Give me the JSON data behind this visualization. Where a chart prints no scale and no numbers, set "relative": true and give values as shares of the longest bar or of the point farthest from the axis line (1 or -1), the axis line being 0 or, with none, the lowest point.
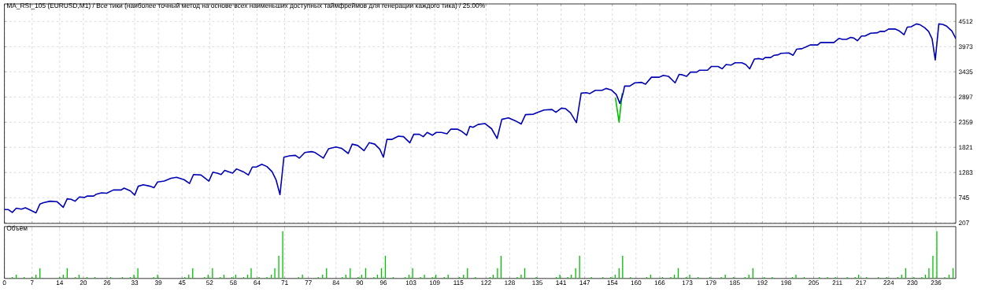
{
  "chart_data": [
    {
      "type": "line",
      "title": "MA_RSI_105 (EURUSD,M1) / Все тики (наиболее точный метод на основе всех наименьших доступных таймфреймов для генерации каждого тика) / 25.00%",
      "xlim": [
        0,
        241
      ],
      "xticks": [
        0,
        7,
        14,
        20,
        26,
        33,
        39,
        45,
        52,
        58,
        64,
        71,
        77,
        84,
        90,
        96,
        103,
        109,
        115,
        122,
        128,
        135,
        141,
        147,
        154,
        160,
        166,
        173,
        179,
        185,
        192,
        198,
        205,
        211,
        217,
        224,
        230,
        236
      ],
      "ylim": [
        195,
        4887
      ],
      "yticks": [
        207,
        745,
        1283,
        1821,
        2359,
        2897,
        3435,
        3973,
        4512
      ],
      "grid": true,
      "tick_labels": "y",
      "series": [
        {
          "color": "#00c000",
          "x": [
            154.8,
            155.7,
            156.5
          ],
          "values": [
            2870,
            2360,
            2970
          ]
        },
        {
          "color": "#0000b4",
          "x": [
            0,
            1.0,
            2.0,
            3.0,
            4.3,
            5.3,
            6.3,
            8.0,
            9.0,
            9.9,
            11.6,
            13.3,
            14.9,
            15.9,
            16.9,
            17.9,
            19.0,
            20.3,
            21.0,
            22.6,
            23.3,
            24.6,
            25.9,
            27.6,
            29.6,
            30.3,
            31.9,
            33.0,
            33.9,
            35.2,
            36.9,
            37.9,
            38.8,
            40.5,
            42.2,
            43.6,
            45.5,
            46.9,
            47.9,
            49.8,
            51.8,
            52.8,
            53.9,
            54.9,
            55.8,
            56.8,
            57.8,
            58.8,
            60.5,
            61.8,
            62.8,
            63.8,
            65.2,
            66.5,
            67.8,
            68.8,
            69.8,
            70.8,
            72.2,
            73.7,
            74.7,
            76.1,
            77.8,
            78.7,
            80.8,
            82.1,
            84.0,
            85.4,
            87.1,
            88.1,
            89.5,
            91.1,
            92.4,
            93.8,
            95.1,
            96.0,
            96.9,
            98.1,
            99.8,
            101.1,
            102.7,
            103.7,
            105.1,
            106.1,
            107.1,
            108.4,
            109.4,
            110.7,
            112.1,
            113.1,
            114.7,
            115.7,
            117.1,
            117.9,
            118.7,
            120.0,
            121.7,
            123.4,
            124.8,
            126.0,
            127.7,
            129.4,
            130.9,
            132.0,
            134.0,
            135.1,
            136.7,
            138.7,
            139.7,
            141.1,
            142.1,
            143.4,
            144.4,
            144.9,
            146.1,
            147.4,
            148.3,
            149.7,
            151.4,
            152.4,
            153.7,
            155.0,
            155.9,
            156.7,
            157.1,
            158.4,
            159.7,
            161.4,
            162.4,
            163.9,
            165.9,
            166.9,
            168.2,
            169.9,
            170.9,
            171.8,
            172.8,
            173.8,
            175.4,
            176.1,
            178.1,
            179.1,
            180.8,
            181.8,
            182.8,
            184.1,
            185.1,
            186.8,
            187.8,
            188.8,
            190.0,
            191.1,
            192.1,
            192.7,
            194.1,
            195.0,
            196.0,
            196.7,
            198.7,
            199.8,
            200.7,
            202.0,
            203.1,
            204.1,
            206.0,
            206.7,
            208.4,
            210.1,
            211.4,
            212.3,
            213.3,
            214.4,
            215.1,
            216.1,
            217.1,
            218.0,
            219.4,
            221.1,
            221.8,
            223.0,
            224.0,
            225.7,
            226.7,
            227.9,
            228.7,
            229.7,
            231.0,
            232.0,
            233.1,
            234.1,
            235.0,
            235.8,
            236.7,
            237.7,
            238.7,
            240.0,
            241.0
          ],
          "values": [
            490,
            490,
            430,
            520,
            500,
            530,
            490,
            420,
            610,
            640,
            670,
            660,
            540,
            720,
            710,
            670,
            760,
            750,
            780,
            780,
            820,
            850,
            840,
            910,
            910,
            950,
            890,
            800,
            990,
            1020,
            990,
            960,
            1080,
            1100,
            1160,
            1180,
            1130,
            1050,
            1240,
            1230,
            1100,
            1290,
            1270,
            1240,
            1330,
            1300,
            1270,
            1360,
            1300,
            1230,
            1400,
            1400,
            1460,
            1410,
            1300,
            1130,
            810,
            1610,
            1640,
            1650,
            1590,
            1710,
            1730,
            1710,
            1590,
            1790,
            1830,
            1800,
            1690,
            1890,
            1860,
            1750,
            1920,
            1890,
            1780,
            1610,
            1990,
            1990,
            2060,
            2050,
            1920,
            2100,
            2100,
            2050,
            2140,
            2080,
            2140,
            2140,
            2110,
            2210,
            2210,
            2170,
            2080,
            2270,
            2250,
            2310,
            2330,
            2220,
            2010,
            2420,
            2450,
            2390,
            2320,
            2520,
            2530,
            2570,
            2620,
            2630,
            2570,
            2660,
            2650,
            2560,
            2420,
            2350,
            2980,
            2990,
            2970,
            3040,
            3040,
            3080,
            3050,
            2950,
            2760,
            2970,
            3130,
            3130,
            3200,
            3210,
            3170,
            3320,
            3320,
            3360,
            3340,
            3200,
            3380,
            3370,
            3340,
            3430,
            3430,
            3470,
            3470,
            3550,
            3550,
            3500,
            3590,
            3580,
            3630,
            3630,
            3590,
            3500,
            3710,
            3720,
            3700,
            3740,
            3740,
            3790,
            3800,
            3830,
            3840,
            3790,
            3920,
            3930,
            3970,
            4010,
            4010,
            4060,
            4060,
            4060,
            4150,
            4130,
            4130,
            4170,
            4160,
            4100,
            4200,
            4200,
            4260,
            4270,
            4300,
            4300,
            4350,
            4350,
            4310,
            4230,
            4390,
            4400,
            4460,
            4440,
            4380,
            4300,
            4140,
            3690,
            4460,
            4450,
            4410,
            4310,
            4150
          ]
        }
      ]
    },
    {
      "type": "bar",
      "title": "Объём",
      "relative": true,
      "color": "#00c000",
      "xlim": [
        0,
        241
      ],
      "xticks": [
        0,
        7,
        14,
        20,
        26,
        33,
        39,
        45,
        52,
        58,
        64,
        71,
        77,
        84,
        90,
        96,
        103,
        109,
        115,
        122,
        128,
        135,
        141,
        147,
        154,
        160,
        166,
        173,
        179,
        185,
        192,
        198,
        205,
        211,
        217,
        224,
        230,
        236
      ],
      "grid": "x",
      "tick_labels": "x",
      "x": [
        2.0,
        3.0,
        5.0,
        7.0,
        8.0,
        9.0,
        14.0,
        14.9,
        15.9,
        18.0,
        18.9,
        20.9,
        22.9,
        26.9,
        29.9,
        31.9,
        32.8,
        33.8,
        37.8,
        38.8,
        45.7,
        46.7,
        47.7,
        50.7,
        51.6,
        52.7,
        54.7,
        55.6,
        57.6,
        58.6,
        60.6,
        61.6,
        62.5,
        64.5,
        66.5,
        67.6,
        68.5,
        69.5,
        70.5,
        74.5,
        75.5,
        79.5,
        80.6,
        81.6,
        85.6,
        86.5,
        87.6,
        89.6,
        90.5,
        91.5,
        93.6,
        94.5,
        95.5,
        96.5,
        98.5,
        101.5,
        102.5,
        103.4,
        105.4,
        106.4,
        108.4,
        109.3,
        111.4,
        112.4,
        115.3,
        116.3,
        117.3,
        119.3,
        123.0,
        123.8,
        124.9,
        125.8,
        129.9,
        130.9,
        131.8,
        134.7,
        139.8,
        140.7,
        142.7,
        143.6,
        144.7,
        145.7,
        148.7,
        151.6,
        153.6,
        154.7,
        155.7,
        156.6,
        158.6,
        162.7,
        163.7,
        166.7,
        168.8,
        169.7,
        170.7,
        172.7,
        173.6,
        175.7,
        178.7,
        181.6,
        182.6,
        184.7,
        187.6,
        188.6,
        189.6,
        192.5,
        194.5,
        199.6,
        200.5,
        202.6,
        206.4,
        208.5,
        210.5,
        213.5,
        215.5,
        216.4,
        218.4,
        221.4,
        223.5,
        226.3,
        227.3,
        228.3,
        230.4,
        232.4,
        233.3,
        234.2,
        235.2,
        236.2,
        238.2,
        239.3,
        240.3
      ],
      "values": [
        0.03,
        0.08,
        0.03,
        0.03,
        0.08,
        0.22,
        0.03,
        0.08,
        0.22,
        0.03,
        0.08,
        0.03,
        0.03,
        0.03,
        0.03,
        0.03,
        0.08,
        0.22,
        0.03,
        0.08,
        0.03,
        0.08,
        0.22,
        0.03,
        0.08,
        0.22,
        0.03,
        0.08,
        0.03,
        0.08,
        0.03,
        0.08,
        0.22,
        0.03,
        0.03,
        0.08,
        0.22,
        0.48,
        1,
        0.03,
        0.08,
        0.03,
        0.08,
        0.22,
        0.03,
        0.08,
        0.22,
        0.03,
        0.08,
        0.22,
        0.03,
        0.08,
        0.22,
        0.48,
        0.03,
        0.03,
        0.08,
        0.22,
        0.03,
        0.08,
        0.03,
        0.08,
        0.03,
        0.08,
        0.03,
        0.08,
        0.22,
        0.03,
        0.03,
        0.08,
        0.22,
        0.48,
        0.03,
        0.08,
        0.22,
        0.03,
        0.03,
        0.08,
        0.03,
        0.08,
        0.22,
        0.48,
        0.03,
        0.03,
        0.03,
        0.08,
        0.22,
        0.48,
        0.03,
        0.03,
        0.08,
        0.03,
        0.03,
        0.08,
        0.22,
        0.03,
        0.08,
        0.03,
        0.03,
        0.03,
        0.08,
        0.03,
        0.03,
        0.08,
        0.22,
        0.03,
        0.03,
        0.03,
        0.08,
        0.03,
        0.03,
        0.03,
        0.03,
        0.03,
        0.03,
        0.08,
        0.03,
        0.03,
        0.03,
        0.03,
        0.08,
        0.22,
        0.03,
        0.03,
        0.08,
        0.22,
        0.48,
        1,
        0.03,
        0.08,
        0.22
      ]
    }
  ]
}
